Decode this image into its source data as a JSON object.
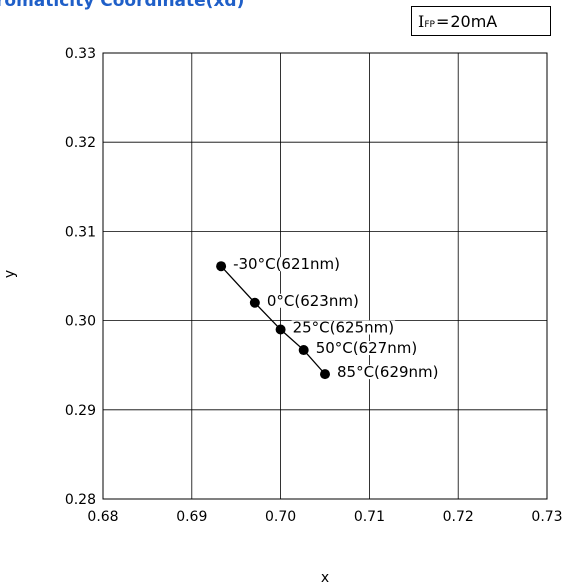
{
  "chart_data": {
    "type": "scatter",
    "title": "romaticity Coordinate(xd)",
    "xlabel": "x",
    "ylabel": "y",
    "xlim": [
      0.68,
      0.73
    ],
    "ylim": [
      0.28,
      0.33
    ],
    "x_ticks": [
      "0.68",
      "0.69",
      "0.70",
      "0.71",
      "0.72",
      "0.73"
    ],
    "y_ticks": [
      "0.28",
      "0.29",
      "0.30",
      "0.31",
      "0.32",
      "0.33"
    ],
    "grid": true,
    "condition": {
      "symbol": "I",
      "subscript": "FP",
      "value": "20mA"
    },
    "points": [
      {
        "x": 0.6933,
        "y": 0.3061,
        "label": "-30°C(621nm)"
      },
      {
        "x": 0.6971,
        "y": 0.302,
        "label": "0°C(623nm)"
      },
      {
        "x": 0.7,
        "y": 0.299,
        "label": "25°C(625nm)"
      },
      {
        "x": 0.7026,
        "y": 0.2967,
        "label": "50°C(627nm)"
      },
      {
        "x": 0.705,
        "y": 0.294,
        "label": "85°C(629nm)"
      }
    ]
  }
}
